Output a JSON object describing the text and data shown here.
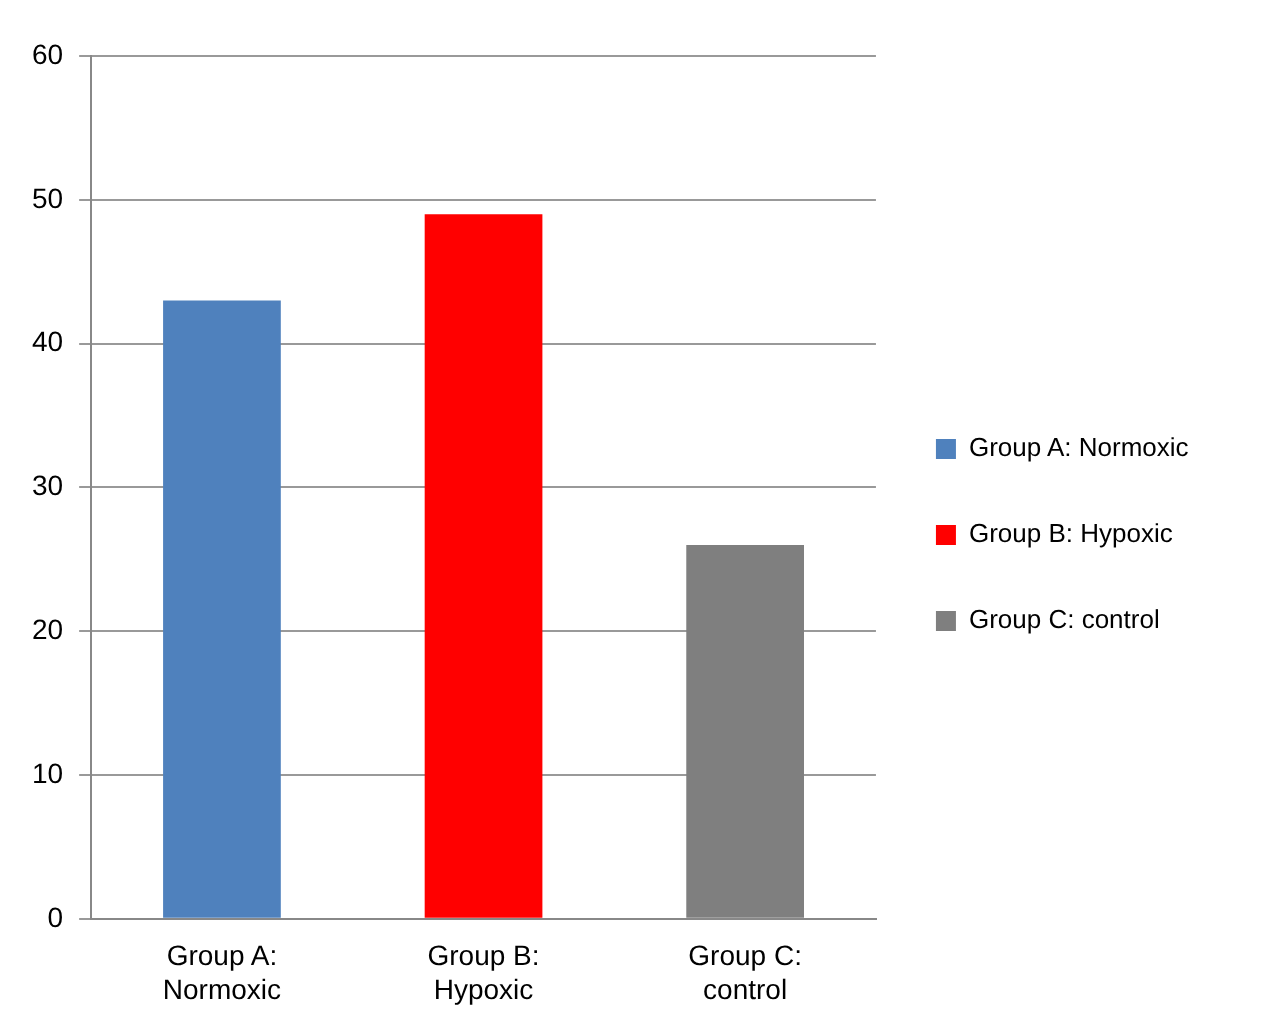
{
  "chart_data": {
    "type": "bar",
    "categories": [
      "Group A: Normoxic",
      "Group B: Hypoxic",
      "Group C: control"
    ],
    "series": [
      {
        "name": "Group A: Normoxic",
        "color": "#4f81bd",
        "values": [
          43,
          null,
          null
        ]
      },
      {
        "name": "Group B: Hypoxic",
        "color": "#ff0000",
        "values": [
          null,
          49,
          null
        ]
      },
      {
        "name": "Group C: control",
        "color": "#7f7f7f",
        "values": [
          null,
          null,
          26
        ]
      }
    ],
    "ylim": [
      0,
      60
    ],
    "yticks": [
      0,
      10,
      20,
      30,
      40,
      50,
      60
    ],
    "grid": "y",
    "legend": "right"
  }
}
